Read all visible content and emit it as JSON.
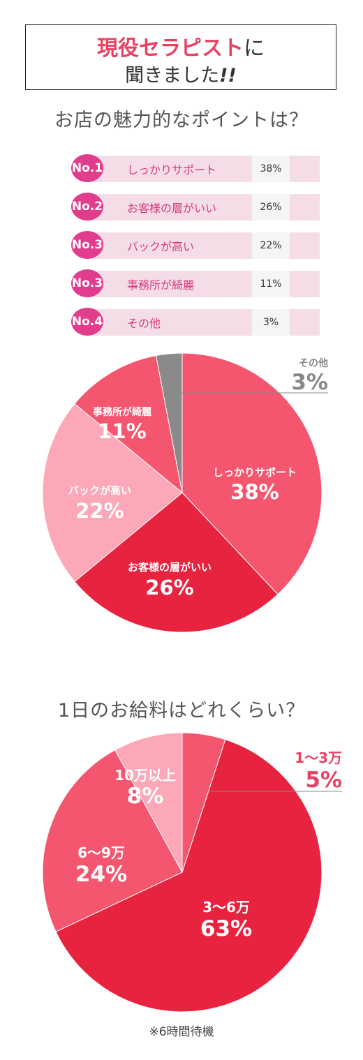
{
  "header": {
    "title_highlight": "現役セラピスト",
    "title_particle": "に",
    "title_line2": "聞きました",
    "title_exclaim": "!!"
  },
  "section1": {
    "heading": "お店の魅力的なポイントは？",
    "ranking": [
      {
        "rank": "No.1",
        "label": "しっかりサポート",
        "value": "38%"
      },
      {
        "rank": "No.2",
        "label": "お客様の層がいい",
        "value": "26%"
      },
      {
        "rank": "No.3",
        "label": "バックが高い",
        "value": "22%"
      },
      {
        "rank": "No.3",
        "label": "事務所が綺麗",
        "value": "11%"
      },
      {
        "rank": "No.4",
        "label": "その他",
        "value": "3%"
      }
    ]
  },
  "section2": {
    "heading": "1日のお給料はどれくらい？",
    "footnote": "※6時間待機"
  },
  "colors": {
    "accent": "#e94064",
    "badge": "#e23c8c",
    "row_bg": "#f5dde8"
  },
  "chart_data": [
    {
      "type": "pie",
      "slices": [
        {
          "label": "しっかりサポート",
          "value": 38,
          "display": "38%",
          "color": "#f4566f"
        },
        {
          "label": "お客様の層がいい",
          "value": 26,
          "display": "26%",
          "color": "#e8233f"
        },
        {
          "label": "バックが高い",
          "value": 22,
          "display": "22%",
          "color": "#fca8b8"
        },
        {
          "label": "事務所が綺麗",
          "value": 11,
          "display": "11%",
          "color": "#f4566f"
        },
        {
          "label": "その他",
          "value": 3,
          "display": "3%",
          "color": "#8a8a8a"
        }
      ]
    },
    {
      "type": "pie",
      "slices": [
        {
          "label": "1〜3万",
          "value": 5,
          "display": "5%",
          "color": "#f4566f"
        },
        {
          "label": "3〜6万",
          "value": 63,
          "display": "63%",
          "color": "#e8233f"
        },
        {
          "label": "6〜9万",
          "value": 24,
          "display": "24%",
          "color": "#f4566f"
        },
        {
          "label": "10万以上",
          "value": 8,
          "display": "8%",
          "color": "#fca8b8"
        }
      ]
    }
  ]
}
